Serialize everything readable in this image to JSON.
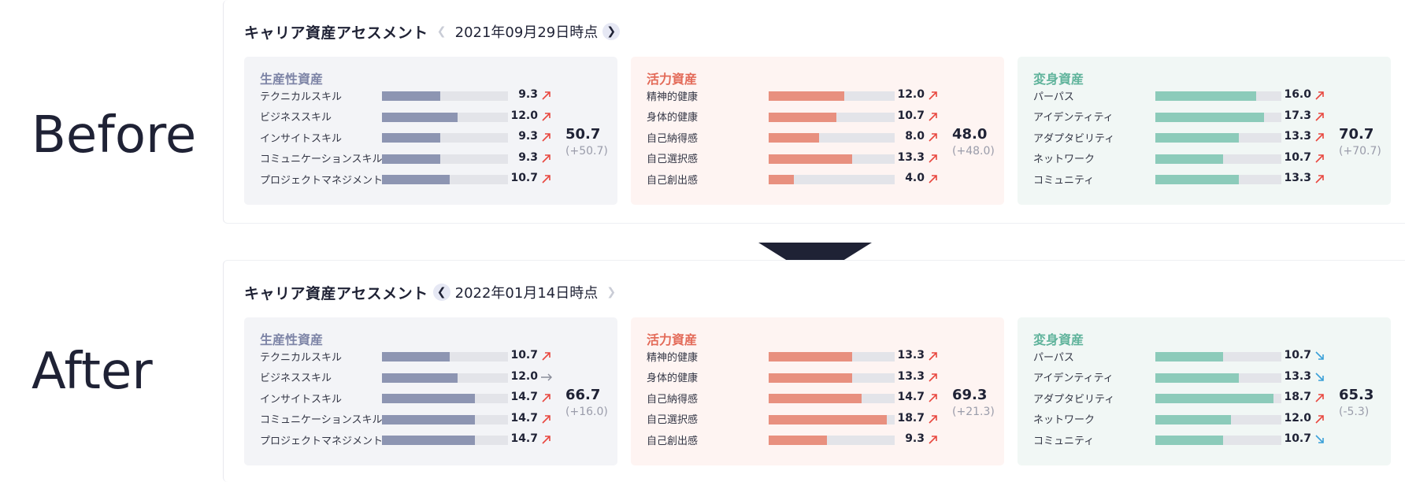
{
  "labels": {
    "before": "Before",
    "after": "After"
  },
  "before": {
    "title": "キャリア資産アセスメント",
    "date": "2021年09月29日時点",
    "cards": [
      {
        "name": "生産性資産",
        "total": "50.7",
        "delta": "(+50.7)",
        "rows": [
          {
            "label": "テクニカルスキル",
            "value": "9.3",
            "trend": "up"
          },
          {
            "label": "ビジネススキル",
            "value": "12.0",
            "trend": "up"
          },
          {
            "label": "インサイトスキル",
            "value": "9.3",
            "trend": "up"
          },
          {
            "label": "コミュニケーションスキル",
            "value": "9.3",
            "trend": "up"
          },
          {
            "label": "プロジェクトマネジメント",
            "value": "10.7",
            "trend": "up"
          }
        ]
      },
      {
        "name": "活力資産",
        "total": "48.0",
        "delta": "(+48.0)",
        "rows": [
          {
            "label": "精神的健康",
            "value": "12.0",
            "trend": "up"
          },
          {
            "label": "身体的健康",
            "value": "10.7",
            "trend": "up"
          },
          {
            "label": "自己納得感",
            "value": "8.0",
            "trend": "up"
          },
          {
            "label": "自己選択感",
            "value": "13.3",
            "trend": "up"
          },
          {
            "label": "自己創出感",
            "value": "4.0",
            "trend": "up"
          }
        ]
      },
      {
        "name": "変身資産",
        "total": "70.7",
        "delta": "(+70.7)",
        "rows": [
          {
            "label": "パーパス",
            "value": "16.0",
            "trend": "up"
          },
          {
            "label": "アイデンティティ",
            "value": "17.3",
            "trend": "up"
          },
          {
            "label": "アダプタビリティ",
            "value": "13.3",
            "trend": "up"
          },
          {
            "label": "ネットワーク",
            "value": "10.7",
            "trend": "up"
          },
          {
            "label": "コミュニティ",
            "value": "13.3",
            "trend": "up"
          }
        ]
      }
    ]
  },
  "after": {
    "title": "キャリア資産アセスメント",
    "date": "2022年01月14日時点",
    "cards": [
      {
        "name": "生産性資産",
        "total": "66.7",
        "delta": "(+16.0)",
        "rows": [
          {
            "label": "テクニカルスキル",
            "value": "10.7",
            "trend": "up"
          },
          {
            "label": "ビジネススキル",
            "value": "12.0",
            "trend": "flat"
          },
          {
            "label": "インサイトスキル",
            "value": "14.7",
            "trend": "up"
          },
          {
            "label": "コミュニケーションスキル",
            "value": "14.7",
            "trend": "up"
          },
          {
            "label": "プロジェクトマネジメント",
            "value": "14.7",
            "trend": "up"
          }
        ]
      },
      {
        "name": "活力資産",
        "total": "69.3",
        "delta": "(+21.3)",
        "rows": [
          {
            "label": "精神的健康",
            "value": "13.3",
            "trend": "up"
          },
          {
            "label": "身体的健康",
            "value": "13.3",
            "trend": "up"
          },
          {
            "label": "自己納得感",
            "value": "14.7",
            "trend": "up"
          },
          {
            "label": "自己選択感",
            "value": "18.7",
            "trend": "up"
          },
          {
            "label": "自己創出感",
            "value": "9.3",
            "trend": "up"
          }
        ]
      },
      {
        "name": "変身資産",
        "total": "65.3",
        "delta": "(-5.3)",
        "rows": [
          {
            "label": "パーパス",
            "value": "10.7",
            "trend": "down"
          },
          {
            "label": "アイデンティティ",
            "value": "13.3",
            "trend": "down"
          },
          {
            "label": "アダプタビリティ",
            "value": "18.7",
            "trend": "up"
          },
          {
            "label": "ネットワーク",
            "value": "12.0",
            "trend": "up"
          },
          {
            "label": "コミュニティ",
            "value": "10.7",
            "trend": "down"
          }
        ]
      }
    ]
  },
  "bar_max": 20,
  "colors": {
    "up": "#e8473f",
    "down": "#3aa0d8",
    "flat": "#8a8d9a"
  }
}
